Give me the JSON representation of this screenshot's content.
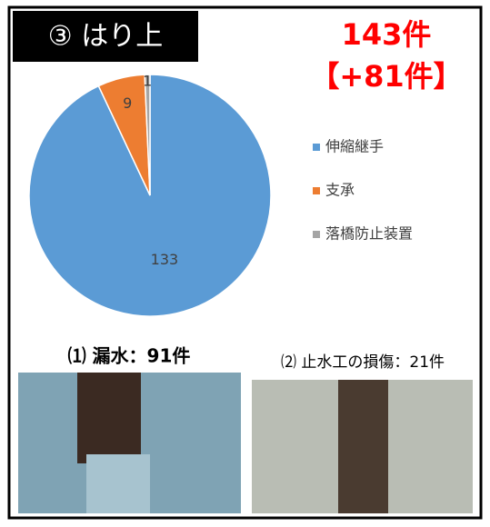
{
  "badge": "③ はり上",
  "chart_data": {
    "type": "pie",
    "annotations": [
      "143件",
      "【+81件】"
    ],
    "categories": [
      "伸縮継手",
      "支承",
      "落橋防止装置"
    ],
    "values": [
      133,
      9,
      1
    ],
    "colors": [
      "#5b9bd5",
      "#ed7d31",
      "#a5a5a5"
    ],
    "legend": "right"
  },
  "photos": [
    {
      "caption": "⑴ 漏水：91件"
    },
    {
      "caption": "⑵ 止水工の損傷：21件"
    }
  ]
}
